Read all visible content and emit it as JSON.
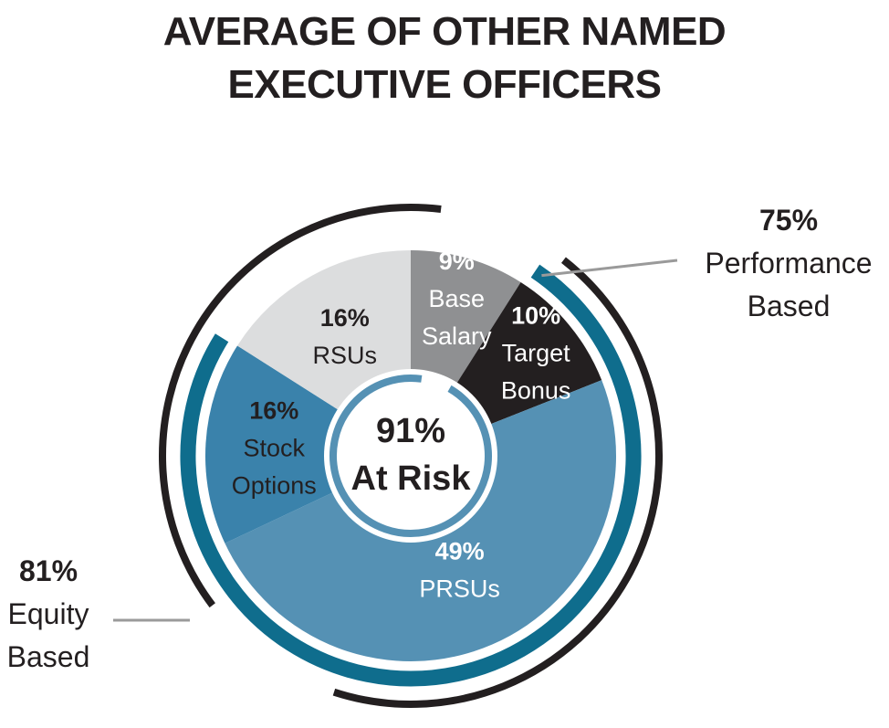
{
  "chart_data": {
    "type": "pie",
    "title": [
      "AVERAGE OF OTHER NAMED",
      "EXECUTIVE OFFICERS"
    ],
    "slices": [
      {
        "label": [
          "Base",
          "Salary"
        ],
        "value": 9,
        "value_text": "9%",
        "color": "#8f9092",
        "text_color": "#ffffff"
      },
      {
        "label": [
          "Target",
          "Bonus"
        ],
        "value": 10,
        "value_text": "10%",
        "color": "#231f20",
        "text_color": "#ffffff"
      },
      {
        "label": [
          "PRSUs"
        ],
        "value": 49,
        "value_text": "49%",
        "color": "#5591b4",
        "text_color": "#ffffff"
      },
      {
        "label": [
          "Stock",
          "Options"
        ],
        "value": 16,
        "value_text": "16%",
        "color": "#3a82ab",
        "text_color": "#231f20"
      },
      {
        "label": [
          "RSUs"
        ],
        "value": 16,
        "value_text": "16%",
        "color": "#dcddde",
        "text_color": "#231f20"
      }
    ],
    "center": {
      "value_text": "91%",
      "label": "At Risk"
    },
    "annotations": {
      "performance_based": {
        "value_text": "75%",
        "lines": [
          "Performance",
          "Based"
        ]
      },
      "equity_based": {
        "value_text": "81%",
        "lines": [
          "Equity",
          "Based"
        ]
      }
    },
    "colors": {
      "teal": "#0f6d8d",
      "ring_light": "#5591b4",
      "black": "#231f20",
      "leader": "#9a9a9a"
    }
  }
}
